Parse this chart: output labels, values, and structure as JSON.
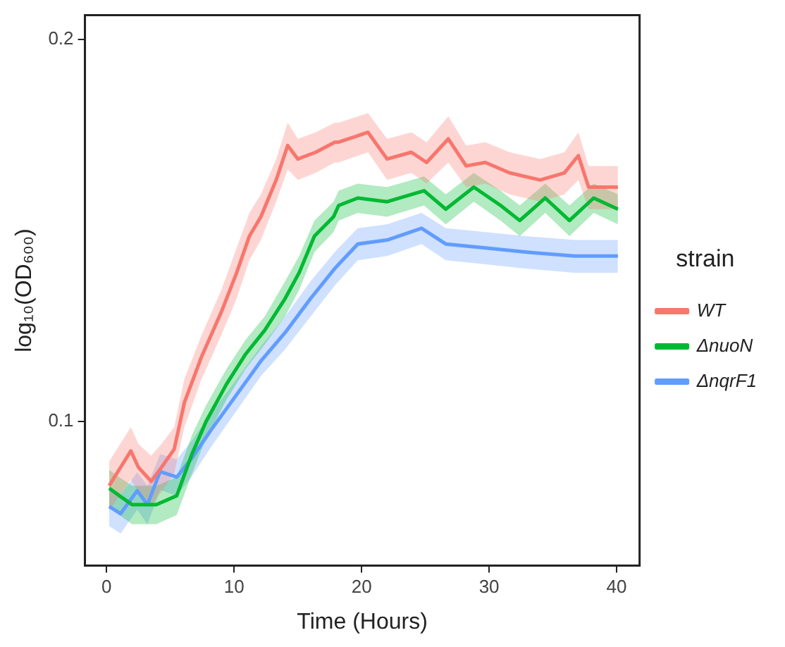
{
  "chart_data": {
    "type": "line",
    "xlabel": "Time (Hours)",
    "ylabel": "log₁₀(OD₆₀₀)",
    "legend_title": "strain",
    "log": "y",
    "grid": false,
    "legend": "right",
    "marker": "none",
    "line_style": "solid",
    "xlim": [
      -1.7,
      41.8
    ],
    "xticks": [
      0,
      10,
      20,
      30,
      40
    ],
    "ylim": [
      0.077,
      0.209
    ],
    "yticks": [
      0.1,
      0.2
    ],
    "series": [
      {
        "name": "WT",
        "color": "#f8766d",
        "x": [
          0.2,
          1.9,
          2.5,
          3.5,
          4.3,
          5.3,
          6.1,
          7.45,
          9.0,
          10.2,
          11.2,
          12.1,
          13.3,
          14.2,
          15.0,
          16.4,
          17.9,
          18.2,
          20.5,
          22.0,
          23.9,
          25.1,
          26.8,
          28.2,
          29.7,
          31.6,
          34.0,
          35.9,
          37.0,
          37.8,
          40.1
        ],
        "values": [
          0.089,
          0.0948,
          0.092,
          0.0897,
          0.092,
          0.0951,
          0.1035,
          0.1125,
          0.122,
          0.131,
          0.14,
          0.145,
          0.155,
          0.165,
          0.161,
          0.163,
          0.166,
          0.166,
          0.169,
          0.161,
          0.163,
          0.16,
          0.167,
          0.159,
          0.16,
          0.157,
          0.155,
          0.157,
          0.162,
          0.153,
          0.153
        ],
        "lower": [
          0.085,
          0.09,
          0.088,
          0.086,
          0.088,
          0.091,
          0.099,
          0.108,
          0.117,
          0.125,
          0.134,
          0.139,
          0.149,
          0.158,
          0.155,
          0.157,
          0.16,
          0.16,
          0.163,
          0.155,
          0.157,
          0.154,
          0.16,
          0.153,
          0.154,
          0.151,
          0.149,
          0.151,
          0.155,
          0.147,
          0.147
        ],
        "upper": [
          0.093,
          0.099,
          0.096,
          0.094,
          0.096,
          0.099,
          0.108,
          0.117,
          0.127,
          0.137,
          0.146,
          0.151,
          0.161,
          0.172,
          0.167,
          0.169,
          0.172,
          0.172,
          0.175,
          0.167,
          0.169,
          0.166,
          0.174,
          0.165,
          0.166,
          0.163,
          0.161,
          0.163,
          0.169,
          0.159,
          0.159
        ]
      },
      {
        "name": "ΔnuoN",
        "color": "#00b933",
        "x": [
          0.2,
          1.0,
          2.0,
          3.9,
          5.5,
          6.7,
          7.8,
          9.4,
          10.9,
          12.4,
          14.0,
          15.1,
          16.3,
          17.8,
          18.2,
          19.7,
          22.0,
          24.9,
          26.6,
          28.8,
          30.9,
          32.4,
          34.4,
          36.3,
          38.2,
          40.1
        ],
        "values": [
          0.0886,
          0.0874,
          0.086,
          0.086,
          0.0874,
          0.0943,
          0.1,
          0.107,
          0.113,
          0.118,
          0.125,
          0.131,
          0.14,
          0.145,
          0.148,
          0.15,
          0.149,
          0.152,
          0.147,
          0.153,
          0.148,
          0.144,
          0.15,
          0.144,
          0.15,
          0.147
        ],
        "lower": [
          0.0856,
          0.0844,
          0.083,
          0.083,
          0.0844,
          0.091,
          0.097,
          0.104,
          0.11,
          0.115,
          0.121,
          0.127,
          0.136,
          0.141,
          0.144,
          0.146,
          0.145,
          0.148,
          0.143,
          0.149,
          0.144,
          0.14,
          0.146,
          0.14,
          0.146,
          0.143
        ],
        "upper": [
          0.0916,
          0.0904,
          0.089,
          0.089,
          0.0904,
          0.0976,
          0.103,
          0.11,
          0.116,
          0.121,
          0.129,
          0.135,
          0.144,
          0.149,
          0.152,
          0.154,
          0.153,
          0.156,
          0.151,
          0.157,
          0.152,
          0.148,
          0.154,
          0.148,
          0.154,
          0.151
        ]
      },
      {
        "name": "ΔnqrF1",
        "color": "#619cff",
        "x": [
          0.2,
          1.1,
          2.4,
          3.2,
          4.2,
          5.5,
          6.7,
          8.2,
          10.2,
          12.1,
          14.0,
          16.0,
          17.9,
          18.2,
          19.7,
          22.0,
          24.7,
          26.6,
          29.7,
          32.8,
          36.7,
          40.1
        ],
        "values": [
          0.0857,
          0.0846,
          0.0882,
          0.086,
          0.0913,
          0.0904,
          0.0936,
          0.0985,
          0.105,
          0.1116,
          0.1175,
          0.125,
          0.132,
          0.133,
          0.138,
          0.139,
          0.142,
          0.138,
          0.137,
          0.136,
          0.135,
          0.135
        ],
        "lower": [
          0.0827,
          0.0816,
          0.0852,
          0.083,
          0.0883,
          0.0874,
          0.0906,
          0.0955,
          0.102,
          0.1086,
          0.114,
          0.121,
          0.128,
          0.129,
          0.134,
          0.135,
          0.138,
          0.134,
          0.133,
          0.132,
          0.131,
          0.131
        ],
        "upper": [
          0.0887,
          0.0876,
          0.0912,
          0.089,
          0.0943,
          0.0934,
          0.0966,
          0.1015,
          0.108,
          0.1146,
          0.121,
          0.129,
          0.136,
          0.137,
          0.142,
          0.143,
          0.146,
          0.142,
          0.141,
          0.14,
          0.139,
          0.139
        ]
      }
    ]
  }
}
